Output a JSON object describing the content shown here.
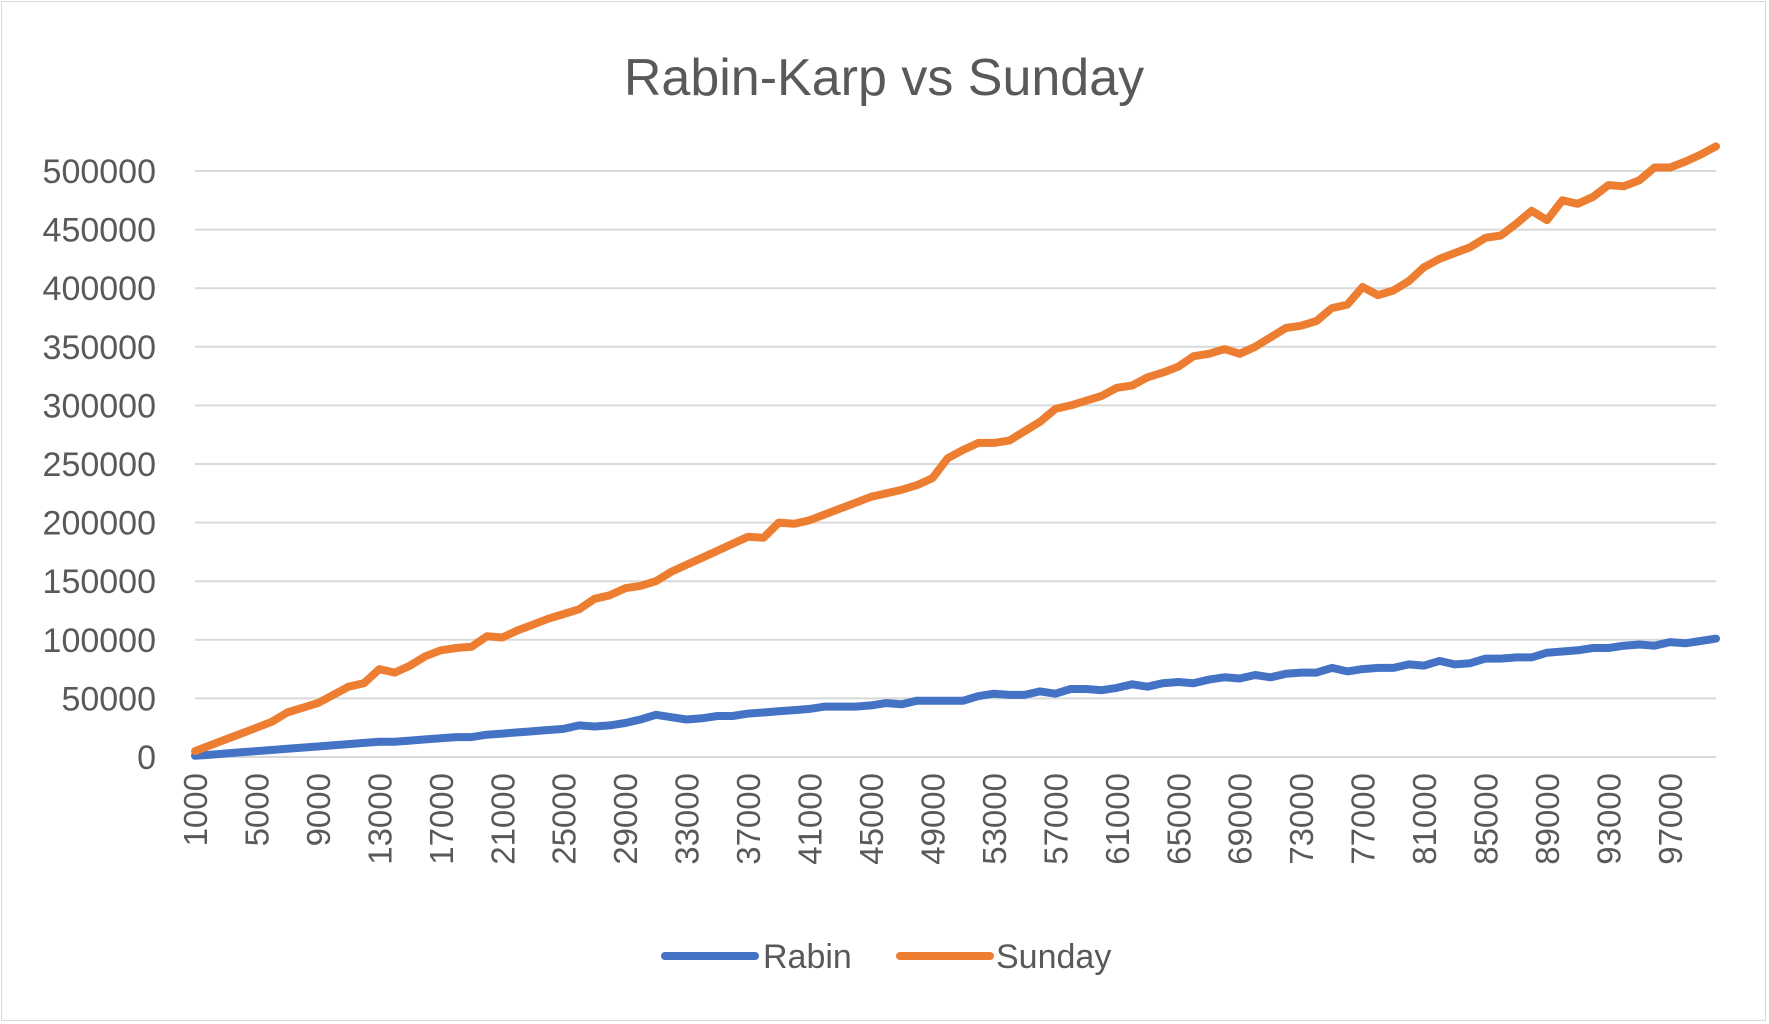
{
  "chart_data": {
    "type": "line",
    "title": "Rabin-Karp vs Sunday",
    "xlabel": "",
    "ylabel": "",
    "ylim": [
      0,
      500000
    ],
    "yticks": [
      0,
      50000,
      100000,
      150000,
      200000,
      250000,
      300000,
      350000,
      400000,
      450000,
      500000
    ],
    "yticks_labels": [
      "0",
      "50000",
      "100000",
      "150000",
      "200000",
      "250000",
      "300000",
      "350000",
      "400000",
      "450000",
      "500000"
    ],
    "x_tick_labels": [
      "1000",
      "5000",
      "9000",
      "13000",
      "17000",
      "21000",
      "25000",
      "29000",
      "33000",
      "37000",
      "41000",
      "45000",
      "49000",
      "53000",
      "57000",
      "61000",
      "65000",
      "69000",
      "73000",
      "77000",
      "81000",
      "85000",
      "89000",
      "93000",
      "97000"
    ],
    "x": [
      1000,
      2000,
      3000,
      4000,
      5000,
      6000,
      7000,
      8000,
      9000,
      10000,
      11000,
      12000,
      13000,
      14000,
      15000,
      16000,
      17000,
      18000,
      19000,
      20000,
      21000,
      22000,
      23000,
      24000,
      25000,
      26000,
      27000,
      28000,
      29000,
      30000,
      31000,
      32000,
      33000,
      34000,
      35000,
      36000,
      37000,
      38000,
      39000,
      40000,
      41000,
      42000,
      43000,
      44000,
      45000,
      46000,
      47000,
      48000,
      49000,
      50000,
      51000,
      52000,
      53000,
      54000,
      55000,
      56000,
      57000,
      58000,
      59000,
      60000,
      61000,
      62000,
      63000,
      64000,
      65000,
      66000,
      67000,
      68000,
      69000,
      70000,
      71000,
      72000,
      73000,
      74000,
      75000,
      76000,
      77000,
      78000,
      79000,
      80000,
      81000,
      82000,
      83000,
      84000,
      85000,
      86000,
      87000,
      88000,
      89000,
      90000,
      91000,
      92000,
      93000,
      94000,
      95000,
      96000,
      97000,
      98000,
      99000,
      100000
    ],
    "grid": true,
    "legend_position": "bottom",
    "series": [
      {
        "name": "Rabin",
        "color": "#4472c4",
        "values": [
          1000,
          2000,
          3000,
          4000,
          5000,
          6000,
          7000,
          8000,
          9000,
          10000,
          11000,
          12000,
          13000,
          13000,
          14000,
          15000,
          16000,
          17000,
          17000,
          19000,
          20000,
          21000,
          22000,
          23000,
          24000,
          27000,
          26000,
          27000,
          29000,
          32000,
          36000,
          34000,
          32000,
          33000,
          35000,
          35000,
          37000,
          38000,
          39000,
          40000,
          41000,
          43000,
          43000,
          43000,
          44000,
          46000,
          45000,
          48000,
          48000,
          48000,
          48000,
          52000,
          54000,
          53000,
          53000,
          56000,
          54000,
          58000,
          58000,
          57000,
          59000,
          62000,
          60000,
          63000,
          64000,
          63000,
          66000,
          68000,
          67000,
          70000,
          68000,
          71000,
          72000,
          72000,
          76000,
          73000,
          75000,
          76000,
          76000,
          79000,
          78000,
          82000,
          79000,
          80000,
          84000,
          84000,
          85000,
          85000,
          89000,
          90000,
          91000,
          93000,
          93000,
          95000,
          96000,
          95000,
          98000,
          97000,
          99000,
          101000
        ]
      },
      {
        "name": "Sunday",
        "color": "#ed7d31",
        "values": [
          5000,
          10000,
          15000,
          20000,
          25000,
          30000,
          38000,
          42000,
          46000,
          53000,
          60000,
          63000,
          75000,
          72000,
          78000,
          86000,
          91000,
          93000,
          94000,
          103000,
          102000,
          108000,
          113000,
          118000,
          122000,
          126000,
          135000,
          138000,
          144000,
          146000,
          150000,
          158000,
          164000,
          170000,
          176000,
          182000,
          188000,
          187000,
          200000,
          199000,
          202000,
          207000,
          212000,
          217000,
          222000,
          225000,
          228000,
          232000,
          238000,
          255000,
          262000,
          268000,
          268000,
          270000,
          278000,
          286000,
          297000,
          300000,
          304000,
          308000,
          315000,
          317000,
          324000,
          328000,
          333000,
          342000,
          344000,
          348000,
          344000,
          350000,
          358000,
          366000,
          368000,
          372000,
          383000,
          386000,
          401000,
          394000,
          398000,
          406000,
          418000,
          425000,
          430000,
          435000,
          443000,
          445000,
          455000,
          466000,
          458000,
          475000,
          472000,
          478000,
          488000,
          487000,
          492000,
          503000,
          503000,
          508000,
          514000,
          521000
        ]
      }
    ]
  }
}
